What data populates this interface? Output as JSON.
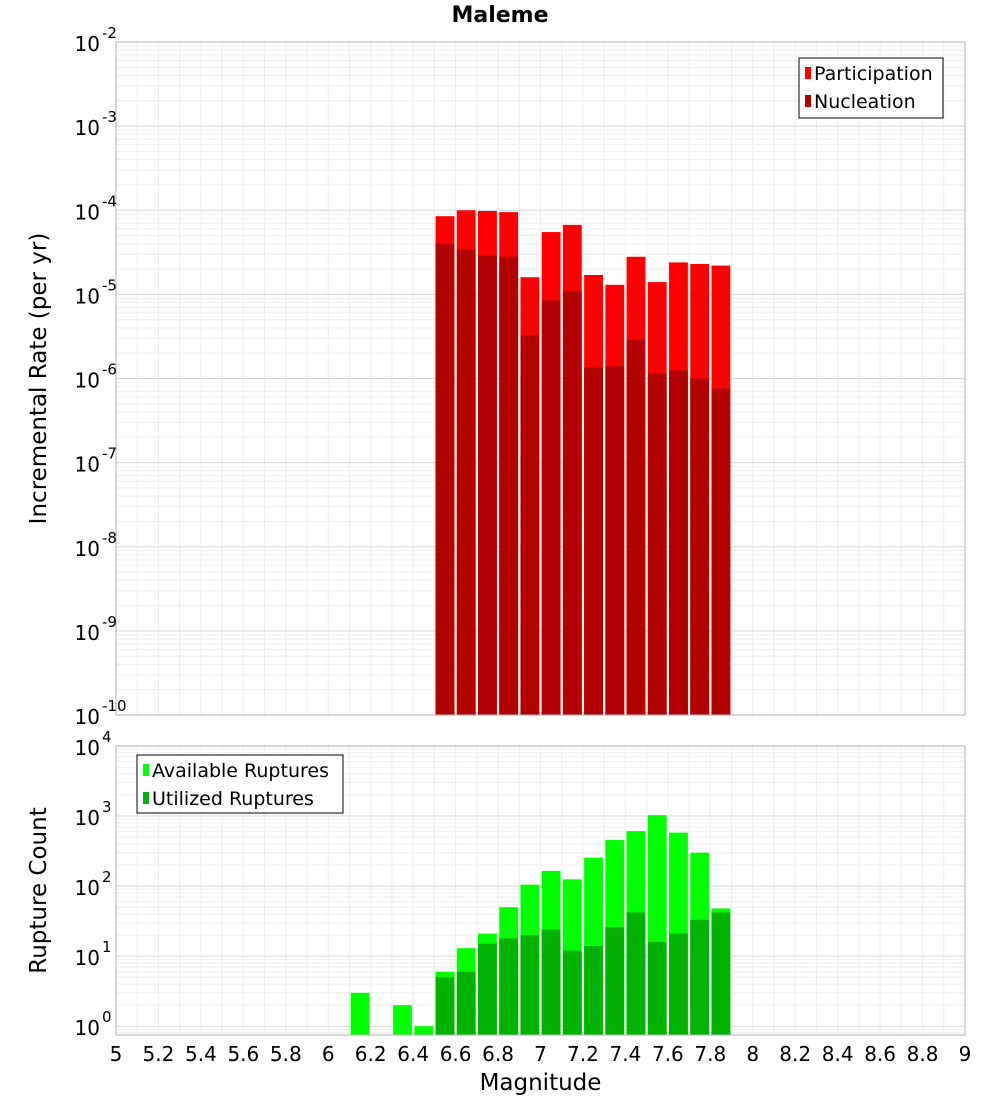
{
  "title": "Maleme",
  "chart_data": [
    {
      "type": "bar",
      "ylabel": "Incremental Rate (per yr)",
      "y_scale": "log",
      "ylim": [
        1e-10,
        0.01
      ],
      "y_tick_exponents": [
        "-10",
        "-9",
        "-8",
        "-7",
        "-6",
        "-5",
        "-4",
        "-3",
        "-2"
      ],
      "xlim": [
        5,
        9
      ],
      "grid": true,
      "legend_position": "top-right",
      "x": [
        6.55,
        6.65,
        6.75,
        6.85,
        6.95,
        7.05,
        7.15,
        7.25,
        7.35,
        7.45,
        7.55,
        7.65,
        7.75,
        7.85
      ],
      "series": [
        {
          "name": "Participation",
          "color": "#ff0000",
          "values": [
            8.5e-05,
            0.0001,
            9.8e-05,
            9.5e-05,
            1.6e-05,
            5.5e-05,
            6.7e-05,
            1.7e-05,
            1.3e-05,
            2.8e-05,
            1.4e-05,
            2.4e-05,
            2.3e-05,
            2.2e-05
          ]
        },
        {
          "name": "Nucleation",
          "color": "#b30000",
          "values": [
            4e-05,
            3.4e-05,
            2.9e-05,
            2.8e-05,
            3.3e-06,
            8.5e-06,
            1.1e-05,
            1.35e-06,
            1.4e-06,
            2.9e-06,
            1.15e-06,
            1.25e-06,
            1e-06,
            7.6e-07
          ]
        }
      ]
    },
    {
      "type": "bar",
      "xlabel": "Magnitude",
      "ylabel": "Rupture Count",
      "y_scale": "log",
      "ylim": [
        0.75,
        10000
      ],
      "y_tick_exponents": [
        "0",
        "1",
        "2",
        "3",
        "4"
      ],
      "xlim": [
        5,
        9
      ],
      "x_tick_labels": [
        "5",
        "5.2",
        "5.4",
        "5.6",
        "5.8",
        "6",
        "6.2",
        "6.4",
        "6.6",
        "6.8",
        "7",
        "7.2",
        "7.4",
        "7.6",
        "7.8",
        "8",
        "8.2",
        "8.4",
        "8.6",
        "8.8",
        "9"
      ],
      "grid": true,
      "legend_position": "top-left",
      "x": [
        6.15,
        6.35,
        6.45,
        6.55,
        6.65,
        6.75,
        6.85,
        6.95,
        7.05,
        7.15,
        7.25,
        7.35,
        7.45,
        7.55,
        7.65,
        7.75,
        7.85
      ],
      "series": [
        {
          "name": "Available Ruptures",
          "color": "#00ff00",
          "values": [
            3,
            2,
            1,
            6,
            13,
            21,
            50,
            105,
            165,
            125,
            255,
            455,
            610,
            1030,
            580,
            300,
            48
          ]
        },
        {
          "name": "Utilized Ruptures",
          "color": "#00b300",
          "values": [
            null,
            null,
            null,
            5,
            6,
            15,
            18,
            20,
            24,
            12,
            14,
            26,
            42,
            16,
            21,
            33,
            42
          ]
        }
      ]
    }
  ]
}
